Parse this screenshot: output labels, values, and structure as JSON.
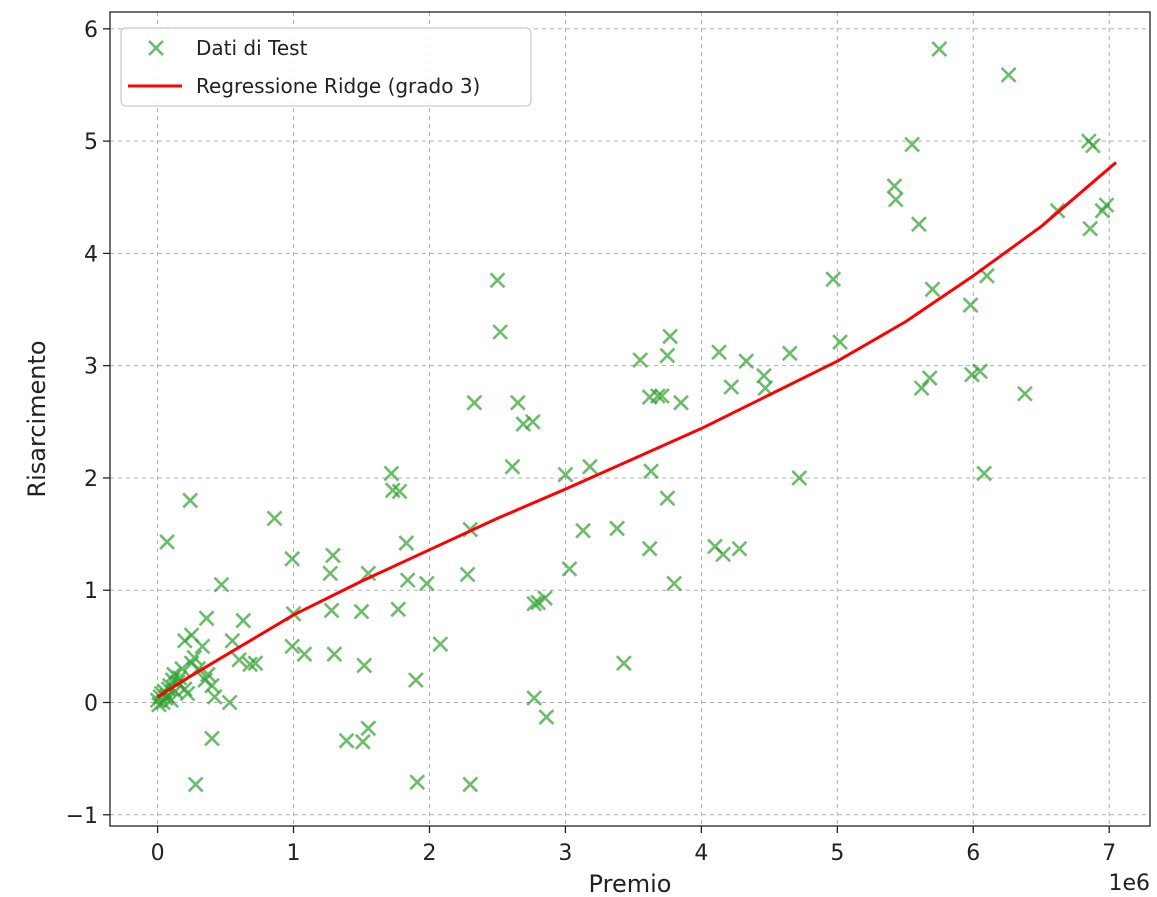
{
  "chart_data": {
    "type": "scatter",
    "title": "",
    "xlabel": "Premio",
    "ylabel": "Risarcimento",
    "x_offset_label": "1e6",
    "xlim": [
      -0.35,
      7.3
    ],
    "ylim": [
      -1.1,
      6.15
    ],
    "x_ticks": [
      0,
      1,
      2,
      3,
      4,
      5,
      6,
      7
    ],
    "y_ticks": [
      -1,
      0,
      1,
      2,
      3,
      4,
      5,
      6
    ],
    "x_tick_labels": [
      "0",
      "1",
      "2",
      "3",
      "4",
      "5",
      "6",
      "7"
    ],
    "y_tick_labels": [
      "−1",
      "0",
      "1",
      "2",
      "3",
      "4",
      "5",
      "6"
    ],
    "grid": true,
    "legend": "top-left",
    "series": [
      {
        "name": "Dati di Test",
        "kind": "scatter",
        "marker": "x",
        "color": "#2ca02c",
        "points": [
          [
            0.0,
            0.02
          ],
          [
            0.01,
            -0.02
          ],
          [
            0.02,
            0.05
          ],
          [
            0.03,
            0.08
          ],
          [
            0.04,
            0.0
          ],
          [
            0.05,
            0.1
          ],
          [
            0.06,
            0.04
          ],
          [
            0.07,
            0.06
          ],
          [
            0.08,
            0.12
          ],
          [
            0.09,
            0.15
          ],
          [
            0.1,
            0.02
          ],
          [
            0.11,
            0.2
          ],
          [
            0.12,
            0.25
          ],
          [
            0.13,
            0.1
          ],
          [
            0.15,
            0.18
          ],
          [
            0.16,
            0.22
          ],
          [
            0.18,
            0.3
          ],
          [
            0.2,
            0.12
          ],
          [
            0.22,
            0.08
          ],
          [
            0.25,
            0.35
          ],
          [
            0.27,
            0.4
          ],
          [
            0.3,
            0.3
          ],
          [
            0.33,
            0.5
          ],
          [
            0.35,
            0.2
          ],
          [
            0.37,
            0.25
          ],
          [
            0.4,
            0.15
          ],
          [
            0.42,
            0.05
          ],
          [
            0.07,
            1.43
          ],
          [
            0.24,
            1.8
          ],
          [
            0.2,
            0.55
          ],
          [
            0.25,
            0.6
          ],
          [
            0.36,
            0.75
          ],
          [
            0.47,
            1.05
          ],
          [
            0.55,
            0.55
          ],
          [
            0.6,
            0.38
          ],
          [
            0.63,
            0.73
          ],
          [
            0.68,
            0.34
          ],
          [
            0.72,
            0.35
          ],
          [
            0.53,
            0.0
          ],
          [
            0.4,
            -0.32
          ],
          [
            0.28,
            -0.73
          ],
          [
            0.86,
            1.64
          ],
          [
            0.99,
            1.28
          ],
          [
            1.0,
            0.79
          ],
          [
            0.99,
            0.5
          ],
          [
            1.08,
            0.43
          ],
          [
            1.27,
            1.15
          ],
          [
            1.29,
            1.31
          ],
          [
            1.28,
            0.82
          ],
          [
            1.3,
            0.43
          ],
          [
            1.39,
            -0.34
          ],
          [
            1.5,
            0.81
          ],
          [
            1.52,
            0.33
          ],
          [
            1.55,
            1.15
          ],
          [
            1.51,
            -0.35
          ],
          [
            1.55,
            -0.23
          ],
          [
            1.72,
            2.04
          ],
          [
            1.73,
            1.89
          ],
          [
            1.78,
            1.88
          ],
          [
            1.77,
            0.83
          ],
          [
            1.83,
            1.42
          ],
          [
            1.84,
            1.09
          ],
          [
            1.9,
            0.2
          ],
          [
            1.91,
            -0.71
          ],
          [
            1.98,
            1.06
          ],
          [
            2.08,
            0.52
          ],
          [
            2.28,
            1.14
          ],
          [
            2.3,
            1.54
          ],
          [
            2.3,
            -0.73
          ],
          [
            2.33,
            2.67
          ],
          [
            2.5,
            3.76
          ],
          [
            2.52,
            3.3
          ],
          [
            2.61,
            2.1
          ],
          [
            2.65,
            2.67
          ],
          [
            2.69,
            2.48
          ],
          [
            2.76,
            2.5
          ],
          [
            2.77,
            0.88
          ],
          [
            2.8,
            0.89
          ],
          [
            2.85,
            0.93
          ],
          [
            2.77,
            0.04
          ],
          [
            2.86,
            -0.13
          ],
          [
            3.0,
            2.03
          ],
          [
            3.03,
            1.19
          ],
          [
            3.13,
            1.53
          ],
          [
            3.18,
            2.1
          ],
          [
            3.38,
            1.55
          ],
          [
            3.43,
            0.35
          ],
          [
            3.55,
            3.05
          ],
          [
            3.62,
            2.72
          ],
          [
            3.63,
            2.06
          ],
          [
            3.62,
            1.37
          ],
          [
            3.68,
            2.73
          ],
          [
            3.71,
            2.73
          ],
          [
            3.75,
            3.09
          ],
          [
            3.77,
            3.26
          ],
          [
            3.75,
            1.82
          ],
          [
            3.8,
            1.06
          ],
          [
            3.85,
            2.67
          ],
          [
            4.1,
            1.39
          ],
          [
            4.13,
            3.12
          ],
          [
            4.16,
            1.32
          ],
          [
            4.22,
            2.81
          ],
          [
            4.28,
            1.37
          ],
          [
            4.33,
            3.04
          ],
          [
            4.46,
            2.91
          ],
          [
            4.47,
            2.8
          ],
          [
            4.65,
            3.11
          ],
          [
            4.72,
            2.0
          ],
          [
            4.97,
            3.77
          ],
          [
            5.02,
            3.21
          ],
          [
            5.42,
            4.6
          ],
          [
            5.43,
            4.48
          ],
          [
            5.55,
            4.97
          ],
          [
            5.6,
            4.26
          ],
          [
            5.62,
            2.8
          ],
          [
            5.68,
            2.89
          ],
          [
            5.7,
            3.68
          ],
          [
            5.75,
            5.82
          ],
          [
            5.98,
            3.54
          ],
          [
            5.99,
            2.92
          ],
          [
            6.05,
            2.95
          ],
          [
            6.08,
            2.04
          ],
          [
            6.1,
            3.8
          ],
          [
            6.26,
            5.59
          ],
          [
            6.38,
            2.75
          ],
          [
            6.62,
            4.38
          ],
          [
            6.85,
            5.0
          ],
          [
            6.86,
            4.22
          ],
          [
            6.88,
            4.96
          ],
          [
            6.95,
            4.38
          ],
          [
            6.98,
            4.43
          ]
        ]
      },
      {
        "name": "Regressione Ridge (grado 3)",
        "kind": "line",
        "color": "#ff0000",
        "x": [
          0.0,
          0.25,
          0.5,
          0.75,
          1.0,
          1.5,
          2.0,
          2.5,
          3.0,
          3.5,
          4.0,
          4.5,
          5.0,
          5.5,
          6.0,
          6.5,
          7.05
        ],
        "y": [
          0.05,
          0.24,
          0.42,
          0.6,
          0.78,
          1.08,
          1.36,
          1.64,
          1.9,
          2.17,
          2.44,
          2.74,
          3.04,
          3.39,
          3.8,
          4.24,
          4.81
        ]
      }
    ]
  }
}
